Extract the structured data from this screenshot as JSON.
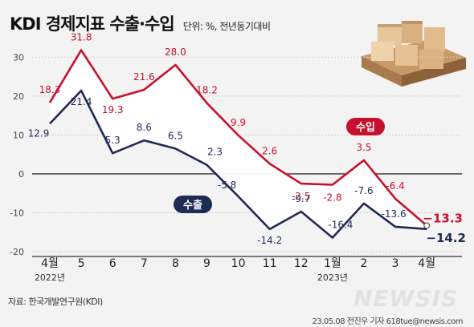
{
  "header": {
    "title": "KDI 경제지표 수출·수입",
    "unit": "단위: %, 전년동기대비"
  },
  "chart_data": {
    "type": "line",
    "categories": [
      "4월",
      "5",
      "6",
      "7",
      "8",
      "9",
      "10",
      "11",
      "12",
      "1월",
      "2",
      "3",
      "4월"
    ],
    "year_labels": [
      {
        "index": 0,
        "text": "2022년"
      },
      {
        "index": 9,
        "text": "2023년"
      }
    ],
    "series": [
      {
        "name": "수입",
        "color": "#c8102e",
        "values": [
          18.3,
          31.8,
          19.3,
          21.6,
          28.0,
          18.2,
          9.9,
          2.6,
          -2.5,
          -2.8,
          3.5,
          -6.4,
          -13.3
        ],
        "labels": [
          "18.3",
          "31.8",
          "19.3",
          "21.6",
          "28.0",
          "18.2",
          "9.9",
          "2.6",
          "-2.5",
          "-2.8",
          "3.5",
          "-6.4",
          "−13.3"
        ]
      },
      {
        "name": "수출",
        "color": "#1f2a55",
        "values": [
          12.9,
          21.4,
          5.3,
          8.6,
          6.5,
          2.3,
          -5.8,
          -14.2,
          -9.7,
          -16.4,
          -7.6,
          -13.6,
          -14.2
        ],
        "labels": [
          "12.9",
          "21.4",
          "5.3",
          "8.6",
          "6.5",
          "2.3",
          "-5.8",
          "-14.2",
          "-9.7",
          "-16.4",
          "-7.6",
          "-13.6",
          "−14.2"
        ]
      }
    ],
    "yticks": [
      30,
      20,
      10,
      0,
      -10,
      -20
    ],
    "ylim": [
      -20,
      35
    ],
    "grid": true,
    "fill_between": true,
    "colors": {
      "import": "#c8102e",
      "export": "#1f2a55",
      "axis": "#333333",
      "grid": "#cfcfcf",
      "fill": "#ffffff"
    }
  },
  "footer": {
    "source": "자료: 한국개발연구원(KDI)",
    "credit": "23.05.08 전진우 기자 618tue@newsis.com",
    "watermark": "NEWSIS"
  }
}
